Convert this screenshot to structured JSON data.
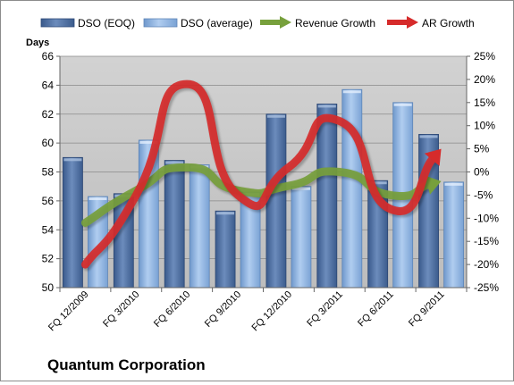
{
  "chart_data": {
    "type": "bar",
    "title": "",
    "company": "Quantum Corporation",
    "y_left_title": "Days",
    "y_left_range": [
      50,
      66
    ],
    "y_left_ticks": [
      "50",
      "52",
      "54",
      "56",
      "58",
      "60",
      "62",
      "64",
      "66"
    ],
    "y_right_range": [
      -25,
      25
    ],
    "y_right_ticks": [
      "-25%",
      "-20%",
      "-15%",
      "-10%",
      "-5%",
      "0%",
      "5%",
      "10%",
      "15%",
      "20%",
      "25%"
    ],
    "categories": [
      "FQ 12/2009",
      "FQ 3/2010",
      "FQ 6/2010",
      "FQ 9/2010",
      "FQ 12/2010",
      "FQ 3/2011",
      "FQ 6/2011",
      "FQ 9/2011"
    ],
    "legend_position": "top",
    "grid": "horizontal",
    "series": [
      {
        "name": "DSO (EOQ)",
        "kind": "bar",
        "axis": "left",
        "color": "#4f6f9f",
        "values": [
          59.0,
          56.5,
          58.8,
          55.3,
          62.0,
          62.7,
          57.4,
          60.6
        ]
      },
      {
        "name": "DSO (average)",
        "kind": "bar",
        "axis": "left",
        "color": "#8fb4e3",
        "values": [
          56.3,
          60.2,
          58.5,
          56.6,
          57.0,
          63.7,
          62.8,
          57.3
        ]
      },
      {
        "name": "Revenue Growth",
        "kind": "line",
        "axis": "right",
        "color": "#77a03c",
        "values": [
          -11,
          -4,
          1,
          -4,
          -3,
          0,
          -5,
          -2
        ]
      },
      {
        "name": "AR Growth",
        "kind": "line",
        "axis": "right",
        "color": "#d62b2b",
        "values": [
          -20,
          -5,
          19,
          -5,
          1,
          11,
          -8,
          5
        ]
      }
    ]
  }
}
